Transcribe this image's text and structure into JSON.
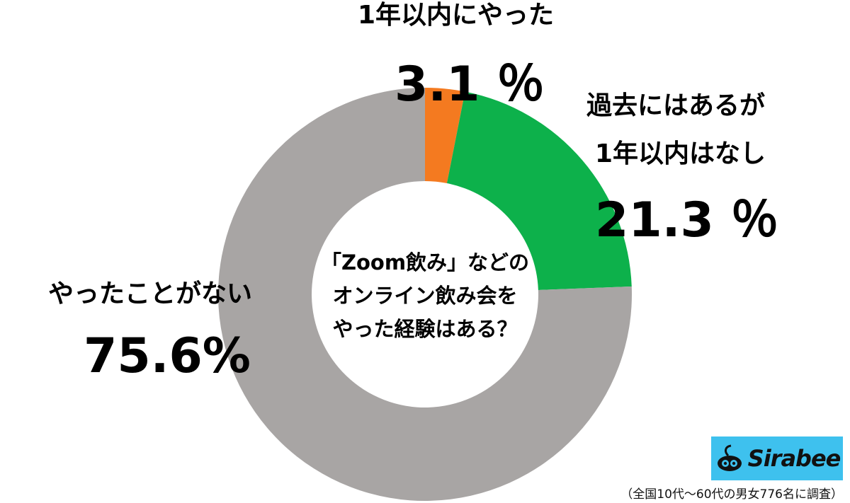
{
  "chart_data": {
    "type": "pie",
    "style": "donut",
    "title": "「Zoom飲み」などのオンライン飲み会をやった経験はある？",
    "title_lines": [
      "「Zoom飲み」などの",
      "オンライン飲み会を",
      "やった経験はある？"
    ],
    "slices": [
      {
        "category_lines": [
          "1年以内にやった"
        ],
        "value": 3.1,
        "value_label": "3.1 ％",
        "color": "#f47a20"
      },
      {
        "category_lines": [
          "過去にはあるが",
          "1年以内はなし"
        ],
        "value": 21.3,
        "value_label": "21.3 ％",
        "color": "#0db14b"
      },
      {
        "category_lines": [
          "やったことがない"
        ],
        "value": 75.6,
        "value_label": "75.6%",
        "color": "#a8a5a4"
      }
    ]
  },
  "brand": {
    "name": "Sirabee",
    "color": "#3ec1ee",
    "icon": "sirabee-logo-icon"
  },
  "footnote": "（全国10代〜60代の男女776名に調査）"
}
